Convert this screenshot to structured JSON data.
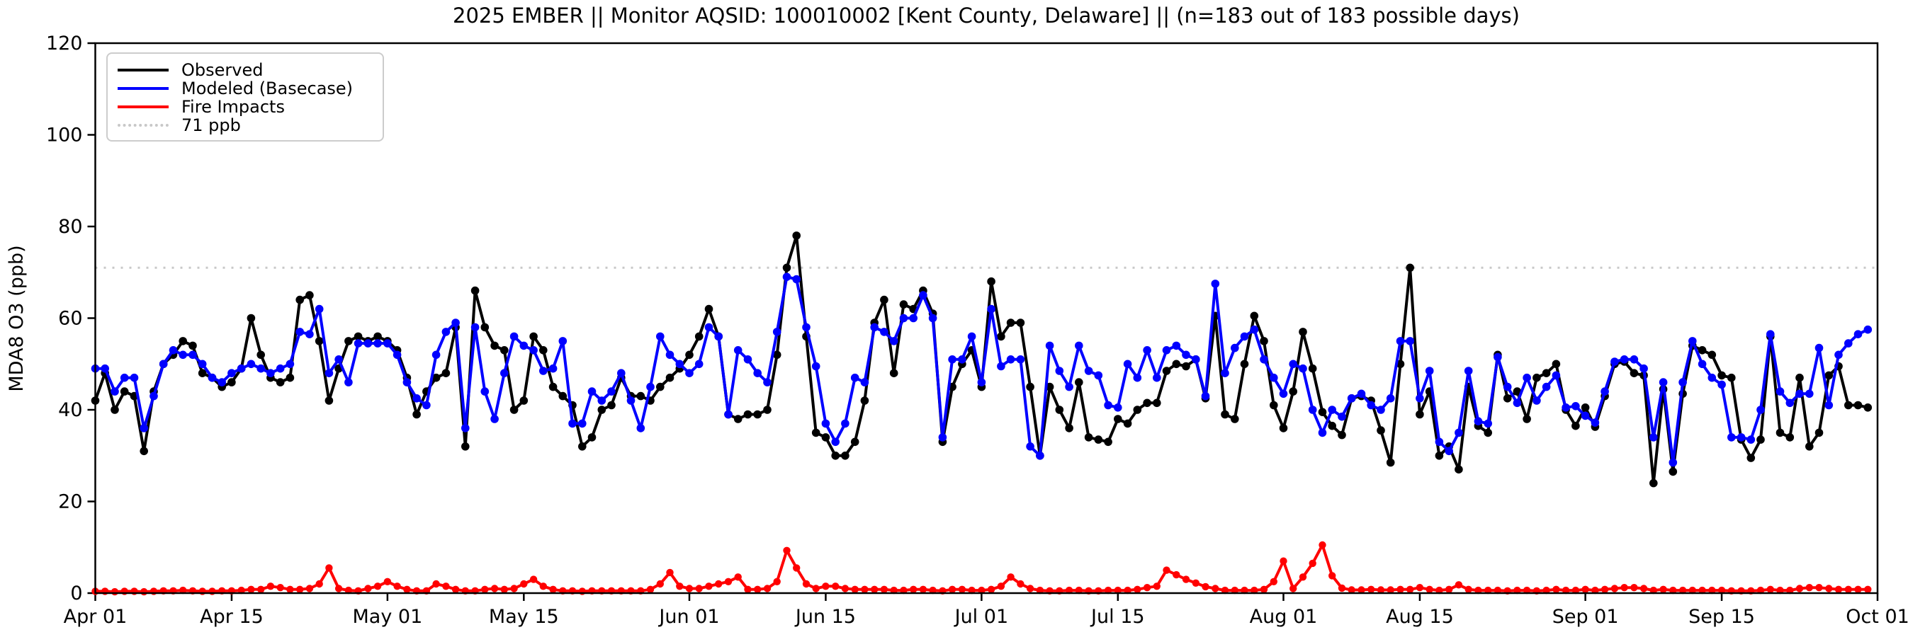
{
  "title": "2025 EMBER || Monitor AQSID: 100010002 [Kent County, Delaware] || (n=183 out of 183 possible days)",
  "axes": {
    "ylabel": "MDA8 O3 (ppb)",
    "ylim": [
      0,
      120
    ],
    "yticks": [
      0,
      20,
      40,
      60,
      80,
      100,
      120
    ],
    "xlim_days": [
      0,
      183
    ],
    "xticks": [
      {
        "label": "Apr 01",
        "day": 0
      },
      {
        "label": "Apr 15",
        "day": 14
      },
      {
        "label": "May 01",
        "day": 30
      },
      {
        "label": "May 15",
        "day": 44
      },
      {
        "label": "Jun 01",
        "day": 61
      },
      {
        "label": "Jun 15",
        "day": 75
      },
      {
        "label": "Jul 01",
        "day": 91
      },
      {
        "label": "Jul 15",
        "day": 105
      },
      {
        "label": "Aug 01",
        "day": 122
      },
      {
        "label": "Aug 15",
        "day": 136
      },
      {
        "label": "Sep 01",
        "day": 153
      },
      {
        "label": "Sep 15",
        "day": 167
      },
      {
        "label": "Oct 01",
        "day": 183
      }
    ]
  },
  "legend": [
    {
      "label": "Observed",
      "color": "#000000",
      "style": "solid"
    },
    {
      "label": "Modeled (Basecase)",
      "color": "#0000ff",
      "style": "solid"
    },
    {
      "label": "Fire Impacts",
      "color": "#ff0000",
      "style": "solid"
    },
    {
      "label": "71 ppb",
      "color": "#c8c8c8",
      "style": "dotted"
    }
  ],
  "chart_data": {
    "type": "line",
    "title": "2025 EMBER || Monitor AQSID: 100010002 [Kent County, Delaware] || (n=183 out of 183 possible days)",
    "xlabel": "",
    "ylabel": "MDA8 O3 (ppb)",
    "ylim": [
      0,
      120
    ],
    "n_days": 183,
    "x_is_day_index_from": "Apr 01",
    "threshold": {
      "label": "71 ppb",
      "value": 71,
      "color": "#c8c8c8",
      "style": "dotted"
    },
    "series": [
      {
        "name": "Observed",
        "color": "#000000",
        "values": [
          42,
          48,
          40,
          44,
          43,
          31,
          44,
          50,
          52,
          55,
          54,
          48,
          47,
          45,
          46,
          49,
          60,
          52,
          47,
          46,
          47,
          64,
          65,
          55,
          42,
          49,
          55,
          56,
          55,
          56,
          55,
          53,
          47,
          39,
          44,
          47,
          48,
          58,
          32,
          66,
          58,
          54,
          53,
          40,
          42,
          56,
          53,
          45,
          43,
          41,
          32,
          34,
          40,
          41,
          47,
          43,
          43,
          42,
          45,
          47,
          49,
          52,
          56,
          62,
          56,
          39,
          38,
          39,
          39,
          40,
          52,
          71,
          78,
          56,
          35,
          34,
          30,
          30,
          33,
          42,
          59,
          64,
          48,
          63,
          62,
          66,
          61,
          33,
          45,
          50,
          53,
          45,
          68,
          56,
          59,
          59,
          45,
          30,
          45,
          40,
          36,
          46,
          34,
          33.5,
          33,
          38,
          37,
          40,
          41.5,
          41.5,
          48.5,
          50,
          49.5,
          51,
          42.5,
          60.5,
          39,
          38,
          50,
          60.5,
          55,
          41,
          36,
          44,
          57,
          49,
          39.5,
          36.5,
          34.5,
          42.5,
          43,
          42,
          35.5,
          28.5,
          50,
          71,
          39,
          44,
          30,
          32,
          27,
          45,
          36.5,
          35,
          52,
          42.5,
          44,
          38,
          47,
          48,
          50,
          40,
          36.5,
          40.5,
          36.3,
          43,
          50,
          50.5,
          48,
          47.5,
          24,
          44.5,
          26.5,
          43.5,
          54,
          53,
          52,
          47.5,
          47,
          33.5,
          29.5,
          33.5,
          56,
          35,
          34,
          47,
          32,
          35,
          47.5,
          49.5,
          41,
          41,
          40.5
        ]
      },
      {
        "name": "Modeled (Basecase)",
        "color": "#0000ff",
        "values": [
          49,
          49,
          44,
          47,
          47,
          36,
          43,
          50,
          53,
          52,
          52,
          50,
          47,
          46,
          48,
          49,
          50,
          49,
          48,
          49,
          50,
          57,
          56.5,
          62,
          48,
          51,
          46,
          54.5,
          54.5,
          54.5,
          54.5,
          52,
          46,
          42.5,
          41,
          52,
          57,
          59,
          36,
          58,
          44,
          38,
          48,
          56,
          54,
          53,
          48.5,
          49,
          55,
          37,
          37,
          44,
          42,
          44,
          48,
          42,
          36,
          45,
          56,
          52,
          50,
          48,
          50,
          58,
          56,
          39,
          53,
          51,
          48,
          46,
          57,
          69,
          68.5,
          58,
          49.5,
          37,
          33,
          37,
          47,
          46,
          58,
          57,
          55,
          60,
          60,
          65,
          60,
          34,
          51,
          51,
          56,
          46,
          62,
          49.5,
          51,
          51,
          32,
          30,
          54,
          48.5,
          45,
          54,
          48.5,
          47.5,
          41,
          40.5,
          50,
          47,
          53,
          47,
          53,
          54,
          52,
          51,
          43,
          67.5,
          48,
          53.5,
          56,
          57.5,
          51,
          47,
          43.5,
          50,
          49,
          40,
          35,
          40,
          38.5,
          42.5,
          43.5,
          41,
          40,
          42.5,
          55,
          55,
          42.5,
          48.5,
          33,
          31,
          35,
          48.5,
          37.5,
          37,
          51.5,
          45,
          41.5,
          47,
          42,
          45,
          47.5,
          40.5,
          40.8,
          38.7,
          37.2,
          44,
          50.5,
          51,
          51,
          49,
          34,
          46,
          28.5,
          46,
          55,
          50,
          47,
          45.5,
          34,
          34,
          33.5,
          40,
          56.5,
          44,
          41.5,
          43.5,
          43.5,
          53.5,
          41,
          52,
          54.5,
          56.5,
          57.5
        ]
      },
      {
        "name": "Fire Impacts",
        "color": "#ff0000",
        "values": [
          0.4,
          0.4,
          0.3,
          0.4,
          0.4,
          0.3,
          0.4,
          0.5,
          0.5,
          0.6,
          0.5,
          0.4,
          0.4,
          0.5,
          0.5,
          0.6,
          0.8,
          0.8,
          1.5,
          1.2,
          0.8,
          0.8,
          1.0,
          2.0,
          5.5,
          1.0,
          0.6,
          0.5,
          1.0,
          1.5,
          2.5,
          1.5,
          0.8,
          0.5,
          0.5,
          2.0,
          1.5,
          0.8,
          0.5,
          0.5,
          0.8,
          1.0,
          0.8,
          1.0,
          2.0,
          3.0,
          1.5,
          0.8,
          0.5,
          0.5,
          0.4,
          0.5,
          0.5,
          0.5,
          0.5,
          0.5,
          0.5,
          0.8,
          2.0,
          4.5,
          1.5,
          1.0,
          1.0,
          1.5,
          2.0,
          2.5,
          3.5,
          0.8,
          0.8,
          1.0,
          2.5,
          9.3,
          5.5,
          2.0,
          1.0,
          1.5,
          1.5,
          1.0,
          0.8,
          0.8,
          0.8,
          0.8,
          0.6,
          0.6,
          0.8,
          0.8,
          0.6,
          0.5,
          0.8,
          0.8,
          0.6,
          0.6,
          0.8,
          1.5,
          3.5,
          2.0,
          1.0,
          0.6,
          0.5,
          0.5,
          0.6,
          0.6,
          0.5,
          0.5,
          0.6,
          0.6,
          0.6,
          0.8,
          1.2,
          1.5,
          5.0,
          4.0,
          3.0,
          2.2,
          1.4,
          1.0,
          0.6,
          0.6,
          0.6,
          0.6,
          0.8,
          2.5,
          7.0,
          1.0,
          3.5,
          6.5,
          10.5,
          3.8,
          1.1,
          0.7,
          0.7,
          0.8,
          0.7,
          0.7,
          0.8,
          0.8,
          1.2,
          0.8,
          0.6,
          0.8,
          1.8,
          0.8,
          0.6,
          0.6,
          0.6,
          0.5,
          0.6,
          0.6,
          0.5,
          0.6,
          0.8,
          0.6,
          0.6,
          0.8,
          0.6,
          0.8,
          1.0,
          1.2,
          1.2,
          1.0,
          0.6,
          0.8,
          0.6,
          0.6,
          0.6,
          0.6,
          0.6,
          0.6,
          0.5,
          0.5,
          0.5,
          0.6,
          0.8,
          0.6,
          0.6,
          1.0,
          1.2,
          1.2,
          1.0,
          0.8,
          0.8,
          0.8,
          0.8
        ]
      }
    ],
    "legend_position": "upper left",
    "grid": false
  }
}
